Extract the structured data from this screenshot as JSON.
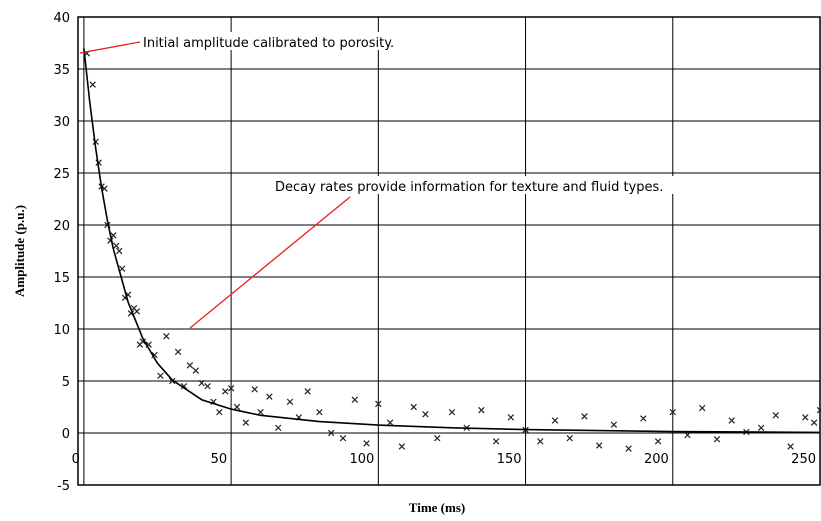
{
  "chart_data": {
    "type": "scatter",
    "xlabel": "Time (ms)",
    "ylabel": "Amplitude (p.u.)",
    "xlim": [
      -2,
      250
    ],
    "ylim": [
      -5,
      40
    ],
    "xticks": [
      0,
      50,
      100,
      150,
      200,
      250
    ],
    "yticks": [
      -5,
      0,
      5,
      10,
      15,
      20,
      25,
      30,
      35,
      40
    ],
    "grid": true,
    "annotations": [
      "Initial amplitude calibrated to porosity.",
      "Decay rates provide information for texture and fluid types."
    ],
    "annotation_color": "#e8201c",
    "series": [
      {
        "type": "scatter",
        "color": "#222222",
        "x": [
          1,
          3,
          4,
          5,
          6,
          7,
          8,
          9,
          10,
          11,
          12,
          13,
          14,
          15,
          16,
          17,
          18,
          19,
          20,
          22,
          24,
          26,
          28,
          30,
          32,
          34,
          36,
          38,
          40,
          42,
          44,
          46,
          48,
          50,
          52,
          55,
          58,
          60,
          63,
          66,
          70,
          73,
          76,
          80,
          84,
          88,
          92,
          96,
          100,
          104,
          108,
          112,
          116,
          120,
          125,
          130,
          135,
          140,
          145,
          150,
          155,
          160,
          165,
          170,
          175,
          180,
          185,
          190,
          195,
          200,
          205,
          210,
          215,
          220,
          225,
          230,
          235,
          240,
          245,
          248,
          250
        ],
        "values": [
          36.5,
          33.5,
          28,
          26,
          23.7,
          23.5,
          20,
          18.5,
          19,
          18,
          17.5,
          15.8,
          13,
          13.3,
          11.5,
          12,
          11.7,
          8.5,
          8.8,
          8.5,
          7.5,
          5.5,
          9.3,
          5,
          7.8,
          4.5,
          6.5,
          6,
          4.8,
          4.5,
          3,
          2,
          4,
          4.3,
          2.5,
          1,
          4.2,
          2,
          3.5,
          0.5,
          3,
          1.5,
          4,
          2,
          0,
          -0.5,
          3.2,
          -1,
          2.8,
          1,
          -1.3,
          2.5,
          1.8,
          -0.5,
          2,
          0.5,
          2.2,
          -0.8,
          1.5,
          0.3,
          -0.8,
          1.2,
          -0.5,
          1.6,
          -1.2,
          0.8,
          -1.5,
          1.4,
          -0.8,
          2,
          -0.2,
          2.4,
          -0.6,
          1.2,
          0.1,
          0.5,
          1.7,
          -1.3,
          1.5,
          1,
          2.2
        ]
      },
      {
        "type": "line",
        "color": "#000000",
        "x": [
          0,
          2,
          4,
          6,
          8,
          10,
          15,
          20,
          25,
          30,
          40,
          50,
          60,
          80,
          100,
          125,
          150,
          200,
          250
        ],
        "values": [
          37,
          31.8,
          27.4,
          23.6,
          20.4,
          17.7,
          12.6,
          9.1,
          6.7,
          5.1,
          3.2,
          2.3,
          1.7,
          1.1,
          0.76,
          0.5,
          0.33,
          0.14,
          0.06
        ]
      }
    ]
  }
}
